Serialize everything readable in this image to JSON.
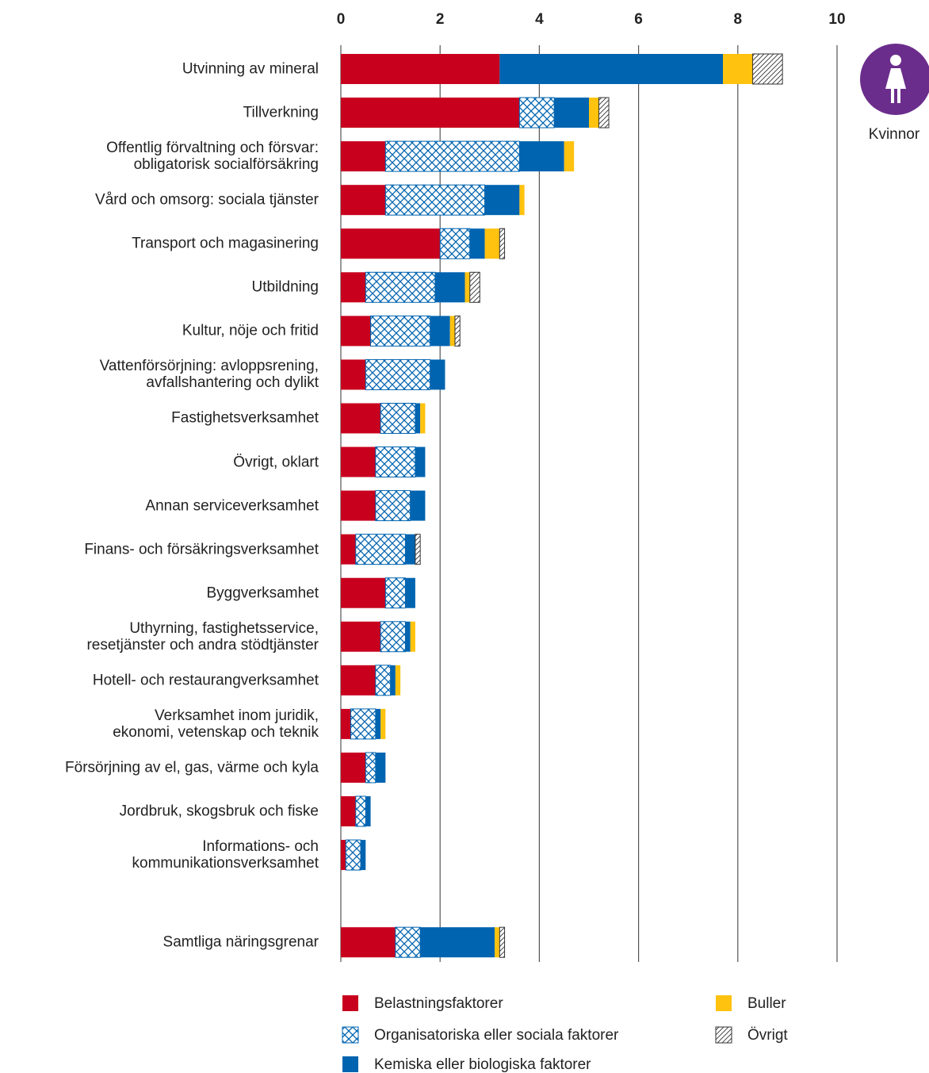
{
  "chart_data": {
    "type": "stacked-barh",
    "categories": [
      "Utvinning av mineral",
      "Tillverkning",
      "Offentlig förvaltning och försvar:\nobligatorisk socialförsäkring",
      "Vård och omsorg: sociala tjänster",
      "Transport och magasinering",
      "Utbildning",
      "Kultur, nöje och fritid",
      "Vattenförsörjning: avloppsrening,\navfallshantering och dylikt",
      "Fastighetsverksamhet",
      "Övrigt, oklart",
      "Annan serviceverksamhet",
      "Finans- och försäkringsverksamhet",
      "Byggverksamhet",
      "Uthyrning, fastighetsservice,\nresetjänster och andra stödtjänster",
      "Hotell- och restaurangverksamhet",
      "Verksamhet inom juridik,\nekonomi, vetenskap och teknik",
      "Försörjning av el, gas, värme och kyla",
      "Jordbruk, skogsbruk och fiske",
      "Informations- och\nkommunikationsverksamhet",
      null,
      "Samtliga näringsgrenar"
    ],
    "series": [
      {
        "name": "Belastningsfaktorer",
        "color": "#c8001e",
        "pattern": "solid",
        "values": [
          3.2,
          3.6,
          0.9,
          0.9,
          2.0,
          0.5,
          0.6,
          0.5,
          0.8,
          0.7,
          0.7,
          0.3,
          0.9,
          0.8,
          0.7,
          0.2,
          0.5,
          0.3,
          0.1,
          null,
          1.1
        ]
      },
      {
        "name": "Organisatoriska eller sociala faktorer",
        "color": "#0064b0",
        "pattern": "crosshatch",
        "values": [
          0,
          0.7,
          2.7,
          2.0,
          0.6,
          1.4,
          1.2,
          1.3,
          0.7,
          0.8,
          0.7,
          1.0,
          0.4,
          0.5,
          0.3,
          0.5,
          0.2,
          0.2,
          0.3,
          null,
          0.5
        ]
      },
      {
        "name": "Kemiska eller biologiska faktorer",
        "color": "#0064b0",
        "pattern": "solid",
        "values": [
          4.5,
          0.7,
          0.9,
          0.7,
          0.3,
          0.6,
          0.4,
          0.3,
          0.1,
          0.2,
          0.3,
          0.2,
          0.2,
          0.1,
          0.1,
          0.1,
          0.2,
          0.1,
          0.1,
          null,
          1.5
        ]
      },
      {
        "name": "Buller",
        "color": "#ffc20e",
        "pattern": "solid",
        "values": [
          0.6,
          0.2,
          0.2,
          0.1,
          0.3,
          0.1,
          0.1,
          0,
          0.1,
          0,
          0,
          0,
          0,
          0.1,
          0.1,
          0.1,
          0,
          0,
          0,
          null,
          0.1
        ]
      },
      {
        "name": "Övrigt",
        "color": "#333333",
        "pattern": "diagonal",
        "values": [
          0.6,
          0.2,
          0,
          0,
          0.1,
          0.2,
          0.1,
          0,
          0,
          0,
          0,
          0.1,
          0,
          0,
          0,
          0,
          0,
          0,
          0,
          null,
          0.1
        ]
      }
    ],
    "xlim": [
      0,
      10
    ],
    "xticks": [
      0,
      2,
      4,
      6,
      8,
      10
    ],
    "grid": true,
    "annotation": "Kvinnor"
  }
}
